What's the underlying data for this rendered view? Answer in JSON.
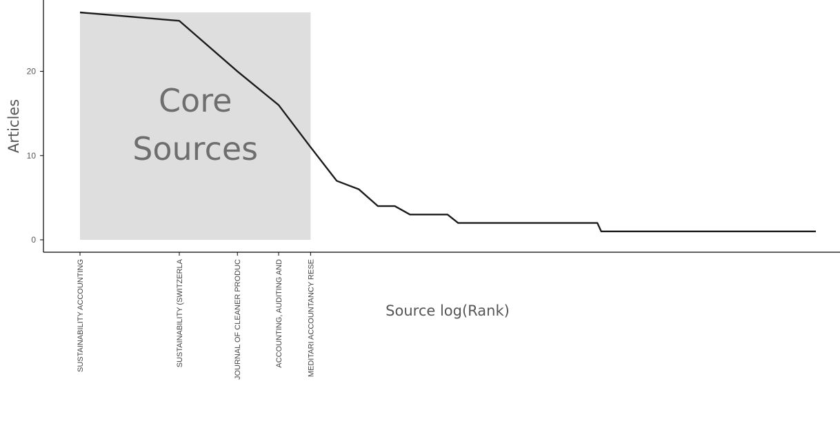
{
  "chart_data": {
    "type": "line",
    "title": "",
    "xlabel": "Source log(Rank)",
    "ylabel": "Articles",
    "ylim": [
      -1.4,
      28.5
    ],
    "y_ticks": [
      0,
      10,
      20
    ],
    "grid": false,
    "log_x": true,
    "x": [
      1,
      2,
      3,
      4,
      5,
      6,
      7,
      8,
      9,
      10,
      11,
      12,
      13,
      14,
      15,
      16,
      17,
      18,
      19,
      20,
      21,
      22,
      23,
      24,
      25,
      26,
      27,
      28,
      29,
      30,
      31,
      32,
      33,
      34,
      35,
      36,
      37,
      38,
      39,
      40,
      41,
      42,
      43,
      44,
      45,
      46,
      47,
      48,
      49,
      50,
      51,
      52,
      53,
      54,
      55,
      56,
      57,
      58,
      59,
      60,
      61,
      62,
      63,
      64,
      65,
      66,
      67,
      68,
      69,
      70,
      71,
      72,
      73,
      74,
      75,
      76,
      77,
      78,
      79,
      80,
      81,
      82,
      83,
      84,
      85,
      86,
      87,
      88,
      89,
      90,
      91,
      92,
      93,
      94,
      95,
      96,
      97,
      98,
      99,
      100,
      101,
      102,
      103,
      104,
      105,
      106,
      107,
      108,
      109,
      110,
      111,
      112,
      113,
      114,
      115,
      116,
      117,
      118,
      119,
      120,
      121,
      122,
      123,
      124,
      125,
      126,
      127,
      128,
      129,
      130,
      131,
      132,
      133,
      134,
      135,
      136,
      137,
      138,
      139,
      140,
      141,
      142,
      143,
      144,
      145,
      146,
      147,
      148,
      149,
      150,
      151,
      152,
      153,
      154,
      155,
      156,
      157,
      158,
      159,
      160,
      161,
      162,
      163,
      164,
      165,
      166,
      167,
      168,
      169,
      170
    ],
    "series": [
      {
        "values": [
          27,
          26,
          20,
          16,
          11,
          7,
          6,
          4,
          4,
          3,
          3,
          3,
          3,
          2,
          2,
          2,
          2,
          2,
          2,
          2,
          2,
          2,
          2,
          2,
          2,
          2,
          2,
          2,
          2,
          2,
          2,
          2,
          2,
          2,
          2,
          2,
          2,
          1,
          1,
          1,
          1,
          1,
          1,
          1,
          1,
          1,
          1,
          1,
          1,
          1,
          1,
          1,
          1,
          1,
          1,
          1,
          1,
          1,
          1,
          1,
          1,
          1,
          1,
          1,
          1,
          1,
          1,
          1,
          1,
          1,
          1,
          1,
          1,
          1,
          1,
          1,
          1,
          1,
          1,
          1,
          1,
          1,
          1,
          1,
          1,
          1,
          1,
          1,
          1,
          1,
          1,
          1,
          1,
          1,
          1,
          1,
          1,
          1,
          1,
          1,
          1,
          1,
          1,
          1,
          1,
          1,
          1,
          1,
          1,
          1,
          1,
          1,
          1,
          1,
          1,
          1,
          1,
          1,
          1,
          1,
          1,
          1,
          1,
          1,
          1,
          1,
          1,
          1,
          1,
          1,
          1,
          1,
          1,
          1,
          1,
          1,
          1,
          1,
          1,
          1,
          1,
          1,
          1,
          1,
          1,
          1,
          1,
          1,
          1,
          1,
          1,
          1,
          1,
          1,
          1,
          1,
          1,
          1,
          1,
          1,
          1,
          1,
          1,
          1,
          1,
          1,
          1,
          1,
          1,
          1
        ]
      }
    ],
    "core_zone": {
      "x_start": 1,
      "x_end": 5,
      "y_top": 27,
      "label_lines": [
        "Core",
        "Sources"
      ]
    },
    "core_sources": [
      {
        "rank": 1,
        "label": "SUSTAINABILITY ACCOUNTING"
      },
      {
        "rank": 2,
        "label": "SUSTAINABILITY (SWITZERLA"
      },
      {
        "rank": 3,
        "label": "JOURNAL OF CLEANER PRODUC"
      },
      {
        "rank": 4,
        "label": "ACCOUNTING, AUDITING AND"
      },
      {
        "rank": 5,
        "label": "MEDITARI ACCOUNTANCY RESE"
      }
    ],
    "colors": {
      "line": "#1a1a1a",
      "core_zone": "#dedede",
      "core_text": "#6e6e6e",
      "axis": "#000000"
    }
  }
}
